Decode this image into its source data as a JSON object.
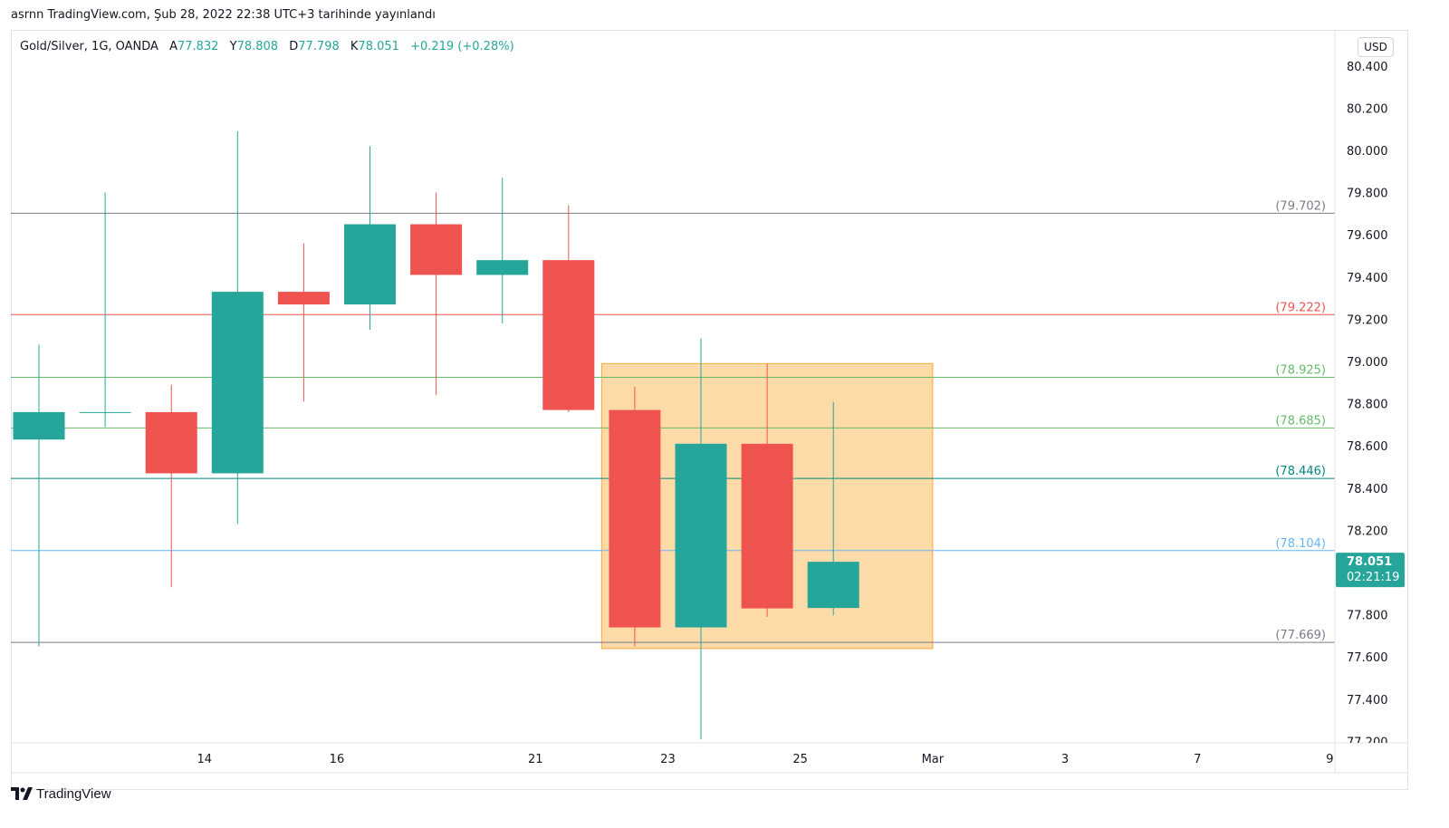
{
  "header": {
    "published_text": "asrnn TradingView.com, Şub 28, 2022 22:38 UTC+3 tarihinde yayınlandı"
  },
  "legend": {
    "symbol": "Gold/Silver, 1G, OANDA",
    "open_label": "A",
    "open_value": "77.832",
    "high_label": "Y",
    "high_value": "78.808",
    "low_label": "D",
    "low_value": "77.798",
    "close_label": "K",
    "close_value": "78.051",
    "change": "+0.219 (+0.28%)"
  },
  "toolbar": {
    "currency_label": "USD"
  },
  "footer": {
    "brand": "TradingView",
    "logo_icon": "tradingview-logo-icon"
  },
  "colors": {
    "up": "#26a69a",
    "down": "#ef5350",
    "zone_fill": "#fddba9",
    "zone_border": "#f4a938"
  },
  "chart_data": {
    "type": "candlestick",
    "title": "Gold/Silver, 1G, OANDA",
    "ylim": [
      77.2,
      80.5
    ],
    "y_ticks": [
      "80.400",
      "80.200",
      "80.000",
      "79.800",
      "79.600",
      "79.400",
      "79.200",
      "79.000",
      "78.800",
      "78.600",
      "78.400",
      "78.200",
      "78.000",
      "77.800",
      "77.600",
      "77.400",
      "77.200"
    ],
    "x_ticks": [
      {
        "label": "14",
        "slot": 2.5
      },
      {
        "label": "16",
        "slot": 4.5
      },
      {
        "label": "21",
        "slot": 7.5
      },
      {
        "label": "23",
        "slot": 9.5
      },
      {
        "label": "25",
        "slot": 11.5
      },
      {
        "label": "Mar",
        "slot": 13.5
      },
      {
        "label": "3",
        "slot": 15.5
      },
      {
        "label": "7",
        "slot": 17.5
      },
      {
        "label": "9",
        "slot": 19.5
      }
    ],
    "candles": [
      {
        "o": 78.63,
        "h": 79.08,
        "l": 77.65,
        "c": 78.76
      },
      {
        "o": 78.76,
        "h": 79.8,
        "l": 78.69,
        "c": 78.76
      },
      {
        "o": 78.76,
        "h": 78.89,
        "l": 77.93,
        "c": 78.47
      },
      {
        "o": 78.47,
        "h": 80.09,
        "l": 78.23,
        "c": 79.33
      },
      {
        "o": 79.33,
        "h": 79.56,
        "l": 78.81,
        "c": 79.27
      },
      {
        "o": 79.27,
        "h": 80.02,
        "l": 79.15,
        "c": 79.65
      },
      {
        "o": 79.65,
        "h": 79.8,
        "l": 78.84,
        "c": 79.41
      },
      {
        "o": 79.41,
        "h": 79.87,
        "l": 79.18,
        "c": 79.48
      },
      {
        "o": 79.48,
        "h": 79.74,
        "l": 78.76,
        "c": 78.77
      },
      {
        "o": 78.77,
        "h": 78.88,
        "l": 77.65,
        "c": 77.74
      },
      {
        "o": 77.74,
        "h": 79.11,
        "l": 77.21,
        "c": 78.61
      },
      {
        "o": 78.61,
        "h": 78.99,
        "l": 77.79,
        "c": 77.83
      },
      {
        "o": 77.832,
        "h": 78.808,
        "l": 77.798,
        "c": 78.051
      }
    ],
    "hlines": [
      {
        "value": 79.702,
        "label": "(79.702)",
        "color": "#787b86"
      },
      {
        "value": 79.222,
        "label": "(79.222)",
        "color": "#ef5350"
      },
      {
        "value": 78.925,
        "label": "(78.925)",
        "color": "#66bb6a"
      },
      {
        "value": 78.685,
        "label": "(78.685)",
        "color": "#66bb6a"
      },
      {
        "value": 78.446,
        "label": "(78.446)",
        "color": "#00897b"
      },
      {
        "value": 78.104,
        "label": "(78.104)",
        "color": "#64b5f6"
      },
      {
        "value": 77.669,
        "label": "(77.669)",
        "color": "#787b86"
      }
    ],
    "zone": {
      "slot_start": 8.5,
      "slot_end": 13.5,
      "top": 78.99,
      "bottom": 77.64
    },
    "last_price": {
      "value": 78.051,
      "price_text": "78.051",
      "countdown": "02:21:19"
    }
  }
}
